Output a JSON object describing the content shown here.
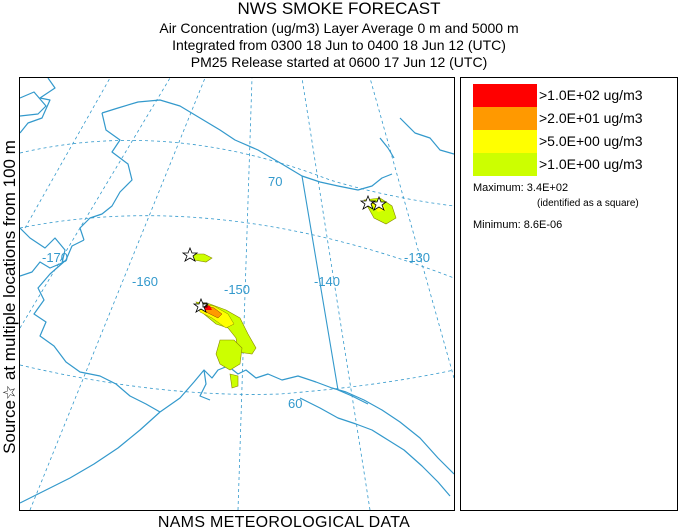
{
  "header": {
    "title": "NWS SMOKE FORECAST",
    "line1": "Air Concentration (ug/m3) Layer Average    0 m and  5000 m",
    "line2": "Integrated from 0300 18 Jun to 0400 18 Jun 12 (UTC)",
    "line3": "PM25 Release started at 0600 17 Jun 12 (UTC)"
  },
  "side_label": "Source☆ at multiple locations from 100 m",
  "footer": "NAMS METEOROLOGICAL DATA",
  "legend": {
    "items": [
      {
        "label": ">1.0E+02 ug/m3",
        "color": "#ff0000"
      },
      {
        "label": ">2.0E+01 ug/m3",
        "color": "#ff9900"
      },
      {
        "label": ">5.0E+00 ug/m3",
        "color": "#ffff00"
      },
      {
        "label": ">1.0E+00 ug/m3",
        "color": "#ccff00"
      }
    ],
    "maximum": "Maximum: 3.4E+02",
    "maximum_note": "(identified as a square)",
    "minimum": "Minimum: 8.6E-06"
  },
  "map": {
    "coast_color": "#3399cc",
    "grid_color": "#3399cc",
    "grid_labels": {
      "lat_70": "70",
      "lat_60": "60",
      "lon_170": "-170",
      "lon_160": "-160",
      "lon_150": "-150",
      "lon_140": "-140",
      "lon_130": "-130"
    },
    "source_marker_icon": "star-icon",
    "max_marker_icon": "square-icon"
  }
}
